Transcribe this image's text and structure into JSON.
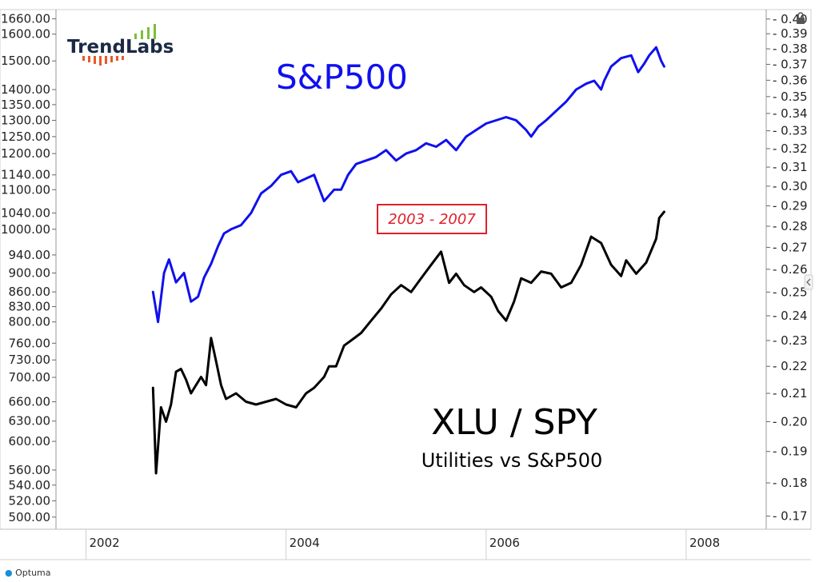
{
  "chart_data": {
    "type": "line",
    "title": "S&P500",
    "annotations": {
      "period": "2003 - 2007",
      "ratio_title": "XLU / SPY",
      "ratio_subtitle": "Utilities vs S&P500"
    },
    "logo": {
      "text": "TrendLabs"
    },
    "footer": "Optuma",
    "colors": {
      "spx": "#1010ee",
      "ratio": "#000000",
      "box": "#e0202a",
      "grid": "#d8d8d8"
    },
    "x_ticks": [
      "2002",
      "2004",
      "2006",
      "2008"
    ],
    "x_range": [
      2001.7,
      2008.8
    ],
    "left_axis": {
      "scale": "log",
      "range": [
        495,
        1665
      ],
      "ticks": [
        "1660.00",
        "1600.00",
        "1500.00",
        "1400.00",
        "1350.00",
        "1300.00",
        "1250.00",
        "1200.00",
        "1140.00",
        "1100.00",
        "1040.00",
        "1000.00",
        "940.00",
        "900.00",
        "860.00",
        "830.00",
        "800.00",
        "760.00",
        "730.00",
        "700.00",
        "660.00",
        "630.00",
        "600.00",
        "560.00",
        "540.00",
        "520.00",
        "500.00"
      ]
    },
    "right_axis": {
      "scale": "log",
      "range": [
        0.1685,
        0.401
      ],
      "ticks": [
        "0.40",
        "0.39",
        "0.38",
        "0.37",
        "0.36",
        "0.35",
        "0.34",
        "0.33",
        "0.32",
        "0.31",
        "0.30",
        "0.29",
        "0.28",
        "0.27",
        "0.26",
        "0.25",
        "0.24",
        "0.23",
        "0.22",
        "0.21",
        "0.20",
        "0.19",
        "0.18",
        "0.17"
      ]
    },
    "series": [
      {
        "name": "S&P500",
        "axis": "left",
        "x": [
          2002.67,
          2002.72,
          2002.78,
          2002.83,
          2002.9,
          2002.98,
          2003.05,
          2003.12,
          2003.18,
          2003.25,
          2003.32,
          2003.38,
          2003.45,
          2003.55,
          2003.65,
          2003.75,
          2003.85,
          2003.95,
          2004.05,
          2004.12,
          2004.2,
          2004.28,
          2004.38,
          2004.48,
          2004.55,
          2004.62,
          2004.7,
          2004.8,
          2004.9,
          2005.0,
          2005.1,
          2005.2,
          2005.3,
          2005.4,
          2005.5,
          2005.6,
          2005.7,
          2005.8,
          2005.9,
          2006.0,
          2006.1,
          2006.2,
          2006.3,
          2006.4,
          2006.45,
          2006.52,
          2006.6,
          2006.7,
          2006.8,
          2006.9,
          2007.0,
          2007.08,
          2007.15,
          2007.18,
          2007.25,
          2007.35,
          2007.45,
          2007.52,
          2007.58,
          2007.63,
          2007.7,
          2007.75,
          2007.78
        ],
        "values": [
          860,
          800,
          900,
          930,
          880,
          900,
          840,
          850,
          890,
          920,
          960,
          990,
          1000,
          1010,
          1040,
          1090,
          1110,
          1140,
          1150,
          1120,
          1130,
          1140,
          1070,
          1100,
          1100,
          1140,
          1170,
          1180,
          1190,
          1210,
          1180,
          1200,
          1210,
          1230,
          1220,
          1240,
          1210,
          1250,
          1270,
          1290,
          1300,
          1310,
          1300,
          1270,
          1250,
          1280,
          1300,
          1330,
          1360,
          1400,
          1420,
          1430,
          1400,
          1430,
          1480,
          1510,
          1520,
          1460,
          1490,
          1520,
          1550,
          1500,
          1480
        ]
      },
      {
        "name": "XLU / SPY",
        "axis": "right",
        "x": [
          2002.67,
          2002.7,
          2002.75,
          2002.8,
          2002.85,
          2002.9,
          2002.95,
          2003.0,
          2003.05,
          2003.1,
          2003.15,
          2003.2,
          2003.25,
          2003.3,
          2003.35,
          2003.4,
          2003.5,
          2003.6,
          2003.7,
          2003.8,
          2003.9,
          2004.0,
          2004.1,
          2004.2,
          2004.28,
          2004.38,
          2004.43,
          2004.5,
          2004.58,
          2004.65,
          2004.75,
          2004.85,
          2004.95,
          2005.05,
          2005.15,
          2005.25,
          2005.35,
          2005.45,
          2005.55,
          2005.63,
          2005.7,
          2005.78,
          2005.88,
          2005.95,
          2006.05,
          2006.12,
          2006.2,
          2006.28,
          2006.35,
          2006.45,
          2006.55,
          2006.65,
          2006.75,
          2006.85,
          2006.95,
          2007.05,
          2007.15,
          2007.25,
          2007.35,
          2007.4,
          2007.5,
          2007.6,
          2007.7,
          2007.73,
          2007.78
        ],
        "values": [
          0.212,
          0.183,
          0.205,
          0.2,
          0.206,
          0.218,
          0.219,
          0.215,
          0.21,
          0.213,
          0.216,
          0.213,
          0.231,
          0.222,
          0.213,
          0.208,
          0.21,
          0.207,
          0.206,
          0.207,
          0.208,
          0.206,
          0.205,
          0.21,
          0.212,
          0.216,
          0.22,
          0.22,
          0.228,
          0.23,
          0.233,
          0.238,
          0.243,
          0.249,
          0.253,
          0.25,
          0.256,
          0.262,
          0.268,
          0.254,
          0.258,
          0.253,
          0.25,
          0.252,
          0.248,
          0.242,
          0.238,
          0.246,
          0.256,
          0.254,
          0.259,
          0.258,
          0.252,
          0.254,
          0.262,
          0.275,
          0.272,
          0.262,
          0.257,
          0.264,
          0.258,
          0.263,
          0.274,
          0.284,
          0.287
        ]
      }
    ]
  }
}
